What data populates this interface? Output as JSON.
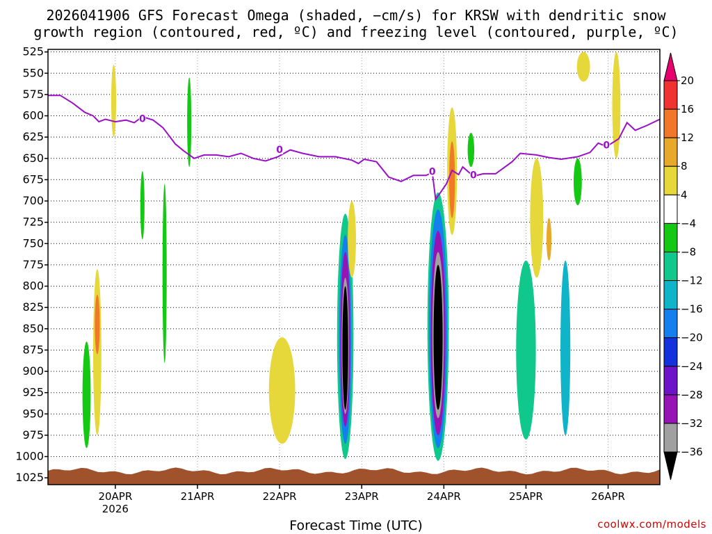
{
  "chart_data": {
    "type": "heatmap",
    "title_line1": "2026041906 GFS Forecast Omega (shaded, −cm/s) for KRSW with dendritic snow",
    "title_line2": "growth region (contoured, red, ºC) and freezing level (contoured, purple, ºC)",
    "xlabel": "Forecast Time (UTC)",
    "credit": "coolwx.com/models",
    "y_levels": [
      "525",
      "550",
      "575",
      "600",
      "625",
      "650",
      "675",
      "700",
      "725",
      "750",
      "775",
      "800",
      "825",
      "850",
      "875",
      "900",
      "925",
      "950",
      "975",
      "1000",
      "1025"
    ],
    "x_ticks": [
      {
        "label": "20APR",
        "sublabel": "2026",
        "t": 0.82
      },
      {
        "label": "21APR",
        "sublabel": "",
        "t": 1.82
      },
      {
        "label": "22APR",
        "sublabel": "",
        "t": 2.82
      },
      {
        "label": "23APR",
        "sublabel": "",
        "t": 3.82
      },
      {
        "label": "24APR",
        "sublabel": "",
        "t": 4.82
      },
      {
        "label": "25APR",
        "sublabel": "",
        "t": 5.82
      },
      {
        "label": "26APR",
        "sublabel": "",
        "t": 6.82
      }
    ],
    "x_range_days": [
      0,
      7.45
    ],
    "colorbar_labels": [
      "20",
      "16",
      "12",
      "8",
      "4",
      "−4",
      "−8",
      "−12",
      "−16",
      "−20",
      "−24",
      "−28",
      "−32",
      "−36"
    ],
    "colorbar_colors": [
      "#e8006e",
      "#f03232",
      "#f07828",
      "#e8a82a",
      "#e6d83a",
      "#ffffff",
      "#14c814",
      "#10c88c",
      "#10b4c8",
      "#1480f0",
      "#1432dc",
      "#6e14c8",
      "#9614b4",
      "#a0a0a0",
      "#000000"
    ],
    "freezing_level_label": "0",
    "freezing_level": [
      [
        0.0,
        576
      ],
      [
        0.15,
        576
      ],
      [
        0.3,
        585
      ],
      [
        0.45,
        596
      ],
      [
        0.55,
        600
      ],
      [
        0.62,
        607
      ],
      [
        0.7,
        604
      ],
      [
        0.82,
        607
      ],
      [
        0.95,
        605
      ],
      [
        1.05,
        608
      ],
      [
        1.15,
        601
      ],
      [
        1.28,
        605
      ],
      [
        1.4,
        614
      ],
      [
        1.55,
        633
      ],
      [
        1.65,
        641
      ],
      [
        1.78,
        650
      ],
      [
        1.9,
        646
      ],
      [
        2.05,
        646
      ],
      [
        2.2,
        648
      ],
      [
        2.35,
        644
      ],
      [
        2.5,
        650
      ],
      [
        2.65,
        653
      ],
      [
        2.8,
        648
      ],
      [
        2.95,
        640
      ],
      [
        3.1,
        644
      ],
      [
        3.3,
        648
      ],
      [
        3.5,
        648
      ],
      [
        3.7,
        652
      ],
      [
        3.78,
        656
      ],
      [
        3.85,
        651
      ],
      [
        4.0,
        654
      ],
      [
        4.15,
        672
      ],
      [
        4.3,
        677
      ],
      [
        4.45,
        670
      ],
      [
        4.6,
        670
      ],
      [
        4.68,
        667
      ],
      [
        4.72,
        698
      ],
      [
        4.78,
        690
      ],
      [
        4.85,
        680
      ],
      [
        4.92,
        664
      ],
      [
        5.0,
        669
      ],
      [
        5.05,
        660
      ],
      [
        5.18,
        671
      ],
      [
        5.3,
        668
      ],
      [
        5.45,
        668
      ],
      [
        5.55,
        661
      ],
      [
        5.65,
        654
      ],
      [
        5.75,
        644
      ],
      [
        5.95,
        646
      ],
      [
        6.1,
        649
      ],
      [
        6.25,
        651
      ],
      [
        6.45,
        648
      ],
      [
        6.6,
        643
      ],
      [
        6.7,
        632
      ],
      [
        6.8,
        636
      ],
      [
        6.95,
        627
      ],
      [
        7.05,
        608
      ],
      [
        7.15,
        617
      ],
      [
        7.3,
        611
      ],
      [
        7.45,
        604
      ]
    ],
    "freezing_labels_at": [
      [
        1.15,
        605
      ],
      [
        2.82,
        641
      ],
      [
        4.68,
        667
      ],
      [
        5.18,
        671
      ],
      [
        6.8,
        636
      ]
    ],
    "omega_blobs": [
      {
        "t": 0.47,
        "p_top": 865,
        "p_bot": 990,
        "w": 0.05,
        "value": -6
      },
      {
        "t": 0.6,
        "p_top": 780,
        "p_bot": 975,
        "w": 0.05,
        "value": 6
      },
      {
        "t": 0.6,
        "p_top": 810,
        "p_bot": 880,
        "w": 0.03,
        "value": 12
      },
      {
        "t": 0.8,
        "p_top": 540,
        "p_bot": 625,
        "w": 0.03,
        "value": 4
      },
      {
        "t": 1.15,
        "p_top": 665,
        "p_bot": 745,
        "w": 0.025,
        "value": -6
      },
      {
        "t": 1.42,
        "p_top": 680,
        "p_bot": 890,
        "w": 0.025,
        "value": -6
      },
      {
        "t": 1.72,
        "p_top": 555,
        "p_bot": 660,
        "w": 0.025,
        "value": -6
      },
      {
        "t": 2.85,
        "p_top": 860,
        "p_bot": 985,
        "w": 0.16,
        "value": 4
      },
      {
        "t": 3.62,
        "p_top": 715,
        "p_bot": 1003,
        "w": 0.1,
        "value": -8
      },
      {
        "t": 3.62,
        "p_top": 740,
        "p_bot": 985,
        "w": 0.075,
        "value": -16
      },
      {
        "t": 3.62,
        "p_top": 760,
        "p_bot": 965,
        "w": 0.06,
        "value": -28
      },
      {
        "t": 3.62,
        "p_top": 790,
        "p_bot": 950,
        "w": 0.045,
        "value": -32
      },
      {
        "t": 3.62,
        "p_top": 800,
        "p_bot": 945,
        "w": 0.035,
        "value": -40
      },
      {
        "t": 3.7,
        "p_top": 700,
        "p_bot": 790,
        "w": 0.05,
        "value": 4
      },
      {
        "t": 4.75,
        "p_top": 690,
        "p_bot": 1005,
        "w": 0.13,
        "value": -8
      },
      {
        "t": 4.75,
        "p_top": 710,
        "p_bot": 990,
        "w": 0.11,
        "value": -16
      },
      {
        "t": 4.75,
        "p_top": 735,
        "p_bot": 975,
        "w": 0.09,
        "value": -28
      },
      {
        "t": 4.75,
        "p_top": 760,
        "p_bot": 955,
        "w": 0.07,
        "value": -32
      },
      {
        "t": 4.75,
        "p_top": 775,
        "p_bot": 945,
        "w": 0.055,
        "value": -40
      },
      {
        "t": 4.92,
        "p_top": 590,
        "p_bot": 740,
        "w": 0.06,
        "value": 6
      },
      {
        "t": 4.92,
        "p_top": 630,
        "p_bot": 720,
        "w": 0.035,
        "value": 12
      },
      {
        "t": 5.15,
        "p_top": 620,
        "p_bot": 660,
        "w": 0.04,
        "value": -6
      },
      {
        "t": 5.82,
        "p_top": 770,
        "p_bot": 980,
        "w": 0.12,
        "value": -10
      },
      {
        "t": 6.3,
        "p_top": 770,
        "p_bot": 975,
        "w": 0.06,
        "value": -14
      },
      {
        "t": 6.45,
        "p_top": 650,
        "p_bot": 705,
        "w": 0.05,
        "value": -6
      },
      {
        "t": 6.52,
        "p_top": 525,
        "p_bot": 560,
        "w": 0.08,
        "value": 6
      },
      {
        "t": 6.92,
        "p_top": 525,
        "p_bot": 650,
        "w": 0.05,
        "value": 4
      },
      {
        "t": 5.95,
        "p_top": 650,
        "p_bot": 790,
        "w": 0.08,
        "value": 4
      },
      {
        "t": 6.1,
        "p_top": 720,
        "p_bot": 770,
        "w": 0.03,
        "value": 8
      }
    ]
  }
}
